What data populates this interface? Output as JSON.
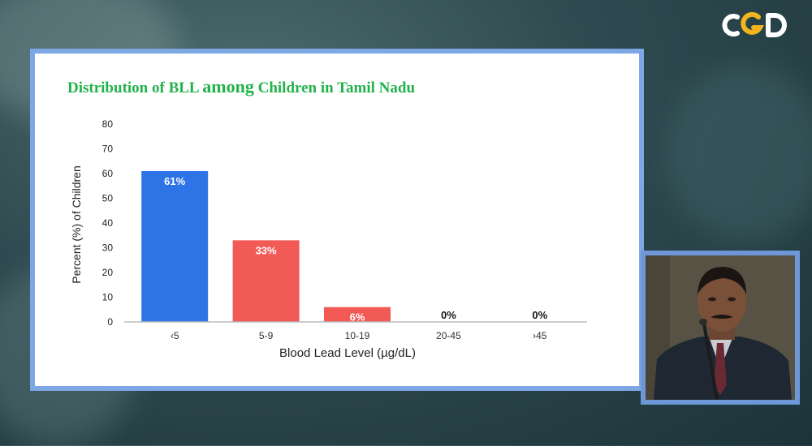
{
  "chart_data": {
    "type": "bar",
    "title_part1": "Distribution of BLL ",
    "title_part2": "among",
    "title_part3": " Children in Tamil Nadu",
    "xlabel": "Blood Lead Level (µg/dL)",
    "ylabel": "Percent (%) of Children",
    "categories": [
      "‹5",
      "5-9",
      "10-19",
      "20-45",
      "›45"
    ],
    "values": [
      61,
      33,
      6,
      0,
      0
    ],
    "data_labels": [
      "61%",
      "33%",
      "6%",
      "0%",
      "0%"
    ],
    "ylim": [
      0,
      80
    ],
    "yticks": [
      0,
      10,
      20,
      30,
      40,
      50,
      60,
      70,
      80
    ],
    "colors": [
      "#2f74e6",
      "#f25a56",
      "#f25a56",
      "#f25a56",
      "#f25a56"
    ],
    "grid": false,
    "legend": "none"
  },
  "logo": {
    "text": "CGD",
    "colors": [
      "#ffffff",
      "#f2b51d"
    ]
  },
  "video": {
    "subject": "speaker-webcam"
  },
  "theme": {
    "title_color": "#22b24c",
    "frame_color": "#7ea7e6"
  }
}
